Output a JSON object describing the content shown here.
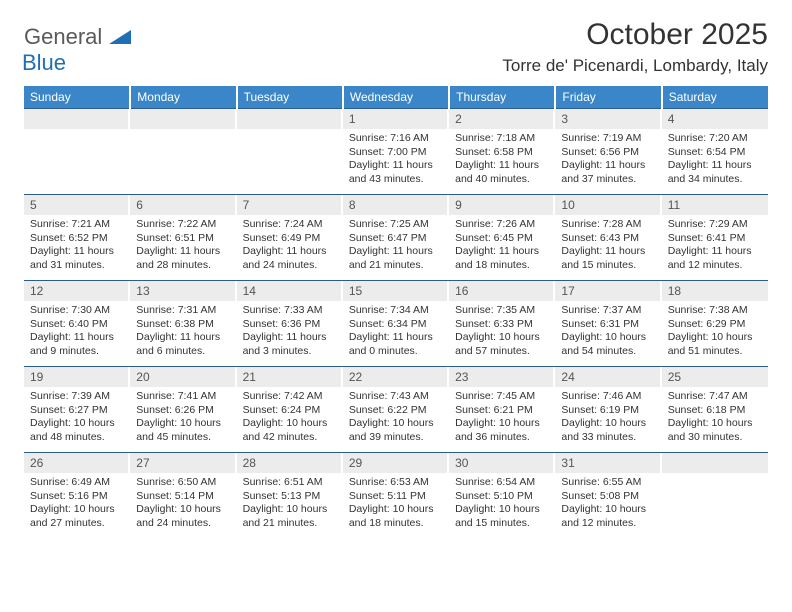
{
  "logo": {
    "text1": "General",
    "text2": "Blue"
  },
  "title": "October 2025",
  "location": "Torre de' Picenardi, Lombardy, Italy",
  "colors": {
    "header_bg": "#3a86c8",
    "header_text": "#ffffff",
    "daynum_bg": "#ececec",
    "border": "#2b5c8a",
    "text": "#333333",
    "logo_gray": "#5a5a5a",
    "logo_blue": "#1f6fb2"
  },
  "weekdays": [
    "Sunday",
    "Monday",
    "Tuesday",
    "Wednesday",
    "Thursday",
    "Friday",
    "Saturday"
  ],
  "weeks": [
    [
      {
        "day": "",
        "sunrise": "",
        "sunset": "",
        "daylight": ""
      },
      {
        "day": "",
        "sunrise": "",
        "sunset": "",
        "daylight": ""
      },
      {
        "day": "",
        "sunrise": "",
        "sunset": "",
        "daylight": ""
      },
      {
        "day": "1",
        "sunrise": "Sunrise: 7:16 AM",
        "sunset": "Sunset: 7:00 PM",
        "daylight": "Daylight: 11 hours and 43 minutes."
      },
      {
        "day": "2",
        "sunrise": "Sunrise: 7:18 AM",
        "sunset": "Sunset: 6:58 PM",
        "daylight": "Daylight: 11 hours and 40 minutes."
      },
      {
        "day": "3",
        "sunrise": "Sunrise: 7:19 AM",
        "sunset": "Sunset: 6:56 PM",
        "daylight": "Daylight: 11 hours and 37 minutes."
      },
      {
        "day": "4",
        "sunrise": "Sunrise: 7:20 AM",
        "sunset": "Sunset: 6:54 PM",
        "daylight": "Daylight: 11 hours and 34 minutes."
      }
    ],
    [
      {
        "day": "5",
        "sunrise": "Sunrise: 7:21 AM",
        "sunset": "Sunset: 6:52 PM",
        "daylight": "Daylight: 11 hours and 31 minutes."
      },
      {
        "day": "6",
        "sunrise": "Sunrise: 7:22 AM",
        "sunset": "Sunset: 6:51 PM",
        "daylight": "Daylight: 11 hours and 28 minutes."
      },
      {
        "day": "7",
        "sunrise": "Sunrise: 7:24 AM",
        "sunset": "Sunset: 6:49 PM",
        "daylight": "Daylight: 11 hours and 24 minutes."
      },
      {
        "day": "8",
        "sunrise": "Sunrise: 7:25 AM",
        "sunset": "Sunset: 6:47 PM",
        "daylight": "Daylight: 11 hours and 21 minutes."
      },
      {
        "day": "9",
        "sunrise": "Sunrise: 7:26 AM",
        "sunset": "Sunset: 6:45 PM",
        "daylight": "Daylight: 11 hours and 18 minutes."
      },
      {
        "day": "10",
        "sunrise": "Sunrise: 7:28 AM",
        "sunset": "Sunset: 6:43 PM",
        "daylight": "Daylight: 11 hours and 15 minutes."
      },
      {
        "day": "11",
        "sunrise": "Sunrise: 7:29 AM",
        "sunset": "Sunset: 6:41 PM",
        "daylight": "Daylight: 11 hours and 12 minutes."
      }
    ],
    [
      {
        "day": "12",
        "sunrise": "Sunrise: 7:30 AM",
        "sunset": "Sunset: 6:40 PM",
        "daylight": "Daylight: 11 hours and 9 minutes."
      },
      {
        "day": "13",
        "sunrise": "Sunrise: 7:31 AM",
        "sunset": "Sunset: 6:38 PM",
        "daylight": "Daylight: 11 hours and 6 minutes."
      },
      {
        "day": "14",
        "sunrise": "Sunrise: 7:33 AM",
        "sunset": "Sunset: 6:36 PM",
        "daylight": "Daylight: 11 hours and 3 minutes."
      },
      {
        "day": "15",
        "sunrise": "Sunrise: 7:34 AM",
        "sunset": "Sunset: 6:34 PM",
        "daylight": "Daylight: 11 hours and 0 minutes."
      },
      {
        "day": "16",
        "sunrise": "Sunrise: 7:35 AM",
        "sunset": "Sunset: 6:33 PM",
        "daylight": "Daylight: 10 hours and 57 minutes."
      },
      {
        "day": "17",
        "sunrise": "Sunrise: 7:37 AM",
        "sunset": "Sunset: 6:31 PM",
        "daylight": "Daylight: 10 hours and 54 minutes."
      },
      {
        "day": "18",
        "sunrise": "Sunrise: 7:38 AM",
        "sunset": "Sunset: 6:29 PM",
        "daylight": "Daylight: 10 hours and 51 minutes."
      }
    ],
    [
      {
        "day": "19",
        "sunrise": "Sunrise: 7:39 AM",
        "sunset": "Sunset: 6:27 PM",
        "daylight": "Daylight: 10 hours and 48 minutes."
      },
      {
        "day": "20",
        "sunrise": "Sunrise: 7:41 AM",
        "sunset": "Sunset: 6:26 PM",
        "daylight": "Daylight: 10 hours and 45 minutes."
      },
      {
        "day": "21",
        "sunrise": "Sunrise: 7:42 AM",
        "sunset": "Sunset: 6:24 PM",
        "daylight": "Daylight: 10 hours and 42 minutes."
      },
      {
        "day": "22",
        "sunrise": "Sunrise: 7:43 AM",
        "sunset": "Sunset: 6:22 PM",
        "daylight": "Daylight: 10 hours and 39 minutes."
      },
      {
        "day": "23",
        "sunrise": "Sunrise: 7:45 AM",
        "sunset": "Sunset: 6:21 PM",
        "daylight": "Daylight: 10 hours and 36 minutes."
      },
      {
        "day": "24",
        "sunrise": "Sunrise: 7:46 AM",
        "sunset": "Sunset: 6:19 PM",
        "daylight": "Daylight: 10 hours and 33 minutes."
      },
      {
        "day": "25",
        "sunrise": "Sunrise: 7:47 AM",
        "sunset": "Sunset: 6:18 PM",
        "daylight": "Daylight: 10 hours and 30 minutes."
      }
    ],
    [
      {
        "day": "26",
        "sunrise": "Sunrise: 6:49 AM",
        "sunset": "Sunset: 5:16 PM",
        "daylight": "Daylight: 10 hours and 27 minutes."
      },
      {
        "day": "27",
        "sunrise": "Sunrise: 6:50 AM",
        "sunset": "Sunset: 5:14 PM",
        "daylight": "Daylight: 10 hours and 24 minutes."
      },
      {
        "day": "28",
        "sunrise": "Sunrise: 6:51 AM",
        "sunset": "Sunset: 5:13 PM",
        "daylight": "Daylight: 10 hours and 21 minutes."
      },
      {
        "day": "29",
        "sunrise": "Sunrise: 6:53 AM",
        "sunset": "Sunset: 5:11 PM",
        "daylight": "Daylight: 10 hours and 18 minutes."
      },
      {
        "day": "30",
        "sunrise": "Sunrise: 6:54 AM",
        "sunset": "Sunset: 5:10 PM",
        "daylight": "Daylight: 10 hours and 15 minutes."
      },
      {
        "day": "31",
        "sunrise": "Sunrise: 6:55 AM",
        "sunset": "Sunset: 5:08 PM",
        "daylight": "Daylight: 10 hours and 12 minutes."
      },
      {
        "day": "",
        "sunrise": "",
        "sunset": "",
        "daylight": ""
      }
    ]
  ]
}
